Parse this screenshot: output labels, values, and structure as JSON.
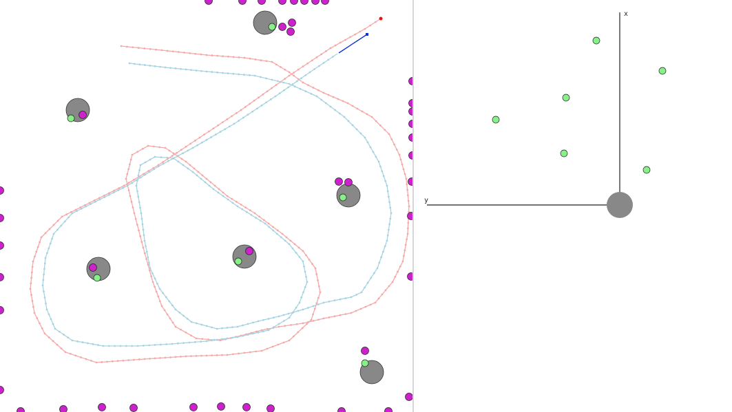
{
  "colors": {
    "background": "#ffffff",
    "divider": "#d6d6d6",
    "true_path": "#f4a9a8",
    "estimated_path": "#a6d3e2",
    "odometry_path": "#1030d8",
    "true_pose_marker": "#ee1111",
    "estimated_pose_marker": "#1030d8",
    "landmark": "#888888",
    "measurement": "#88f088",
    "beacon": "#cc22cc",
    "axis": "#222222"
  },
  "icons": {
    "landmark": "gray-circle-icon",
    "measurement": "green-dot-icon",
    "beacon": "magenta-dot-icon",
    "robot": "robot-disc-icon"
  },
  "robot_frame": {
    "x_axis_label": "x",
    "y_axis_label": "y"
  }
}
